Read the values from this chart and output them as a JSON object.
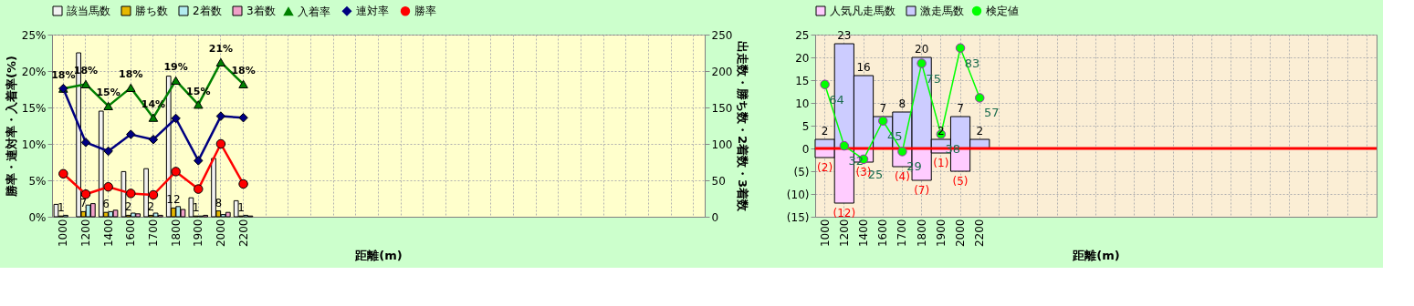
{
  "chart_data": [
    {
      "type": "bar",
      "categories": [
        "1000",
        "1200",
        "1400",
        "1600",
        "1700",
        "1800",
        "1900",
        "2000",
        "2200",
        null,
        null,
        null,
        null,
        null,
        null,
        null,
        null,
        null,
        null,
        null,
        null,
        null,
        null,
        null,
        null,
        null,
        null,
        null,
        null
      ],
      "series": [
        {
          "name": "該当馬数",
          "color": "#f2f2f2",
          "axis": "y2",
          "values": [
            17,
            225,
            145,
            62,
            66,
            193,
            26,
            80,
            22,
            null,
            null,
            null,
            null,
            null,
            null,
            null,
            null,
            null,
            null,
            null,
            null,
            null,
            null,
            null,
            null,
            null,
            null,
            null,
            null
          ]
        },
        {
          "name": "勝ち数",
          "color": "#e6b800",
          "axis": "y2",
          "values": [
            1,
            7,
            6,
            2,
            2,
            12,
            1,
            8,
            1,
            null,
            null,
            null,
            null,
            null,
            null,
            null,
            null,
            null,
            null,
            null,
            null,
            null,
            null,
            null,
            null,
            null,
            null,
            null,
            null
          ],
          "value_labels": [
            "1",
            "7",
            "6",
            "2",
            "2",
            "12",
            "1",
            "8",
            "1",
            null,
            null,
            null,
            null,
            null,
            null,
            null,
            null,
            null,
            null,
            null,
            null,
            null,
            null,
            null,
            null,
            null,
            null,
            null,
            null
          ]
        },
        {
          "name": "2着数",
          "color": "#b3ecf0",
          "axis": "y2",
          "values": [
            2,
            16,
            7,
            5,
            5,
            14,
            1,
            3,
            2,
            null,
            null,
            null,
            null,
            null,
            null,
            null,
            null,
            null,
            null,
            null,
            null,
            null,
            null,
            null,
            null,
            null,
            null,
            null,
            null
          ]
        },
        {
          "name": "3着数",
          "color": "#f0a0c8",
          "axis": "y2",
          "values": [
            0,
            18,
            9,
            4,
            2,
            10,
            2,
            6,
            1,
            null,
            null,
            null,
            null,
            null,
            null,
            null,
            null,
            null,
            null,
            null,
            null,
            null,
            null,
            null,
            null,
            null,
            null,
            null,
            null
          ]
        },
        {
          "name": "入着率",
          "type": "line",
          "color": "#008000",
          "marker": "triangle",
          "values": [
            17.6,
            18.2,
            15.2,
            17.7,
            13.6,
            18.7,
            15.4,
            21.2,
            18.2,
            null,
            null,
            null,
            null,
            null,
            null,
            null,
            null,
            null,
            null,
            null,
            null,
            null,
            null,
            null,
            null,
            null,
            null,
            null,
            null
          ],
          "value_labels": [
            "18%",
            "18%",
            "15%",
            "18%",
            "14%",
            "19%",
            "15%",
            "21%",
            "18%",
            null,
            null,
            null,
            null,
            null,
            null,
            null,
            null,
            null,
            null,
            null,
            null,
            null,
            null,
            null,
            null,
            null,
            null,
            null,
            null
          ]
        },
        {
          "name": "連対率",
          "type": "line",
          "color": "#000080",
          "marker": "diamond",
          "values": [
            17.6,
            10.2,
            9.0,
            11.3,
            10.6,
            13.5,
            7.7,
            13.8,
            13.6,
            null,
            null,
            null,
            null,
            null,
            null,
            null,
            null,
            null,
            null,
            null,
            null,
            null,
            null,
            null,
            null,
            null,
            null,
            null,
            null
          ]
        },
        {
          "name": "勝率",
          "type": "line",
          "color": "#ff0000",
          "marker": "circle",
          "values": [
            5.9,
            3.1,
            4.1,
            3.2,
            3.0,
            6.2,
            3.8,
            10.0,
            4.5,
            null,
            null,
            null,
            null,
            null,
            null,
            null,
            null,
            null,
            null,
            null,
            null,
            null,
            null,
            null,
            null,
            null,
            null,
            null,
            null
          ]
        }
      ],
      "xlabel": "距離(m)",
      "ylabel": "勝率・連対率・入着率(%)",
      "y2label": "出走数・勝ち数・2着数・3着数",
      "ylim": [
        0,
        25
      ],
      "yticks": [
        {
          "value": 0,
          "label": "0%"
        },
        {
          "value": 5,
          "label": "5%"
        },
        {
          "value": 10,
          "label": "10%"
        },
        {
          "value": 15,
          "label": "15%"
        },
        {
          "value": 20,
          "label": "20%"
        },
        {
          "value": 25,
          "label": "25%"
        }
      ],
      "y2lim": [
        0,
        250
      ],
      "y2ticks": [
        0,
        50,
        100,
        150,
        200,
        250
      ],
      "grid": true,
      "legend": "top"
    },
    {
      "type": "bar",
      "stacked": true,
      "categories": [
        "1000",
        "1200",
        "1400",
        "1600",
        "1700",
        "1800",
        "1900",
        "2000",
        "2200",
        null,
        null,
        null,
        null,
        null,
        null,
        null,
        null,
        null,
        null,
        null,
        null,
        null,
        null,
        null,
        null,
        null,
        null,
        null,
        null
      ],
      "series": [
        {
          "name": "人気凡走馬数",
          "color": "#ffccff",
          "values": [
            -2,
            -12,
            -3,
            null,
            -4,
            -7,
            -1,
            -5,
            null,
            null,
            null,
            null,
            null,
            null,
            null,
            null,
            null,
            null,
            null,
            null,
            null,
            null,
            null,
            null,
            null,
            null,
            null,
            null,
            null
          ],
          "value_labels": [
            "(2)",
            "(12)",
            "(3)",
            null,
            "(4)",
            "(7)",
            "(1)",
            "(5)",
            null,
            null,
            null,
            null,
            null,
            null,
            null,
            null,
            null,
            null,
            null,
            null,
            null,
            null,
            null,
            null,
            null,
            null,
            null,
            null,
            null
          ]
        },
        {
          "name": "激走馬数",
          "color": "#ccccff",
          "values": [
            2,
            23,
            16,
            7,
            8,
            20,
            2,
            7,
            2,
            null,
            null,
            null,
            null,
            null,
            null,
            null,
            null,
            null,
            null,
            null,
            null,
            null,
            null,
            null,
            null,
            null,
            null,
            null,
            null
          ],
          "value_labels": [
            "2",
            "23",
            "16",
            "7",
            "8",
            "20",
            "2",
            "7",
            "2",
            null,
            null,
            null,
            null,
            null,
            null,
            null,
            null,
            null,
            null,
            null,
            null,
            null,
            null,
            null,
            null,
            null,
            null,
            null,
            null
          ]
        },
        {
          "name": "検定値",
          "type": "line",
          "color": "#00ff00",
          "marker": "circle",
          "axis": "y2",
          "values": [
            64,
            32,
            25,
            45,
            29,
            75,
            38,
            83,
            57,
            null,
            null,
            null,
            null,
            null,
            null,
            null,
            null,
            null,
            null,
            null,
            null,
            null,
            null,
            null,
            null,
            null,
            null,
            null,
            null
          ],
          "value_labels": [
            "64",
            "32",
            "25",
            "45",
            "29",
            "75",
            "38",
            "83",
            "57",
            null,
            null,
            null,
            null,
            null,
            null,
            null,
            null,
            null,
            null,
            null,
            null,
            null,
            null,
            null,
            null,
            null,
            null,
            null,
            null
          ]
        }
      ],
      "xlabel": "距離(m)",
      "ylim": [
        -15,
        25
      ],
      "yticks": [
        {
          "value": -15,
          "label": "(15)"
        },
        {
          "value": -10,
          "label": "(10)"
        },
        {
          "value": -5,
          "label": "(5)"
        },
        0,
        5,
        10,
        15,
        20,
        25
      ],
      "y2lim": [
        -5,
        90
      ],
      "ref_lines": [
        {
          "axis": "y",
          "value": 0,
          "color": "#ff0000"
        }
      ],
      "grid": true,
      "legend": "top"
    }
  ]
}
